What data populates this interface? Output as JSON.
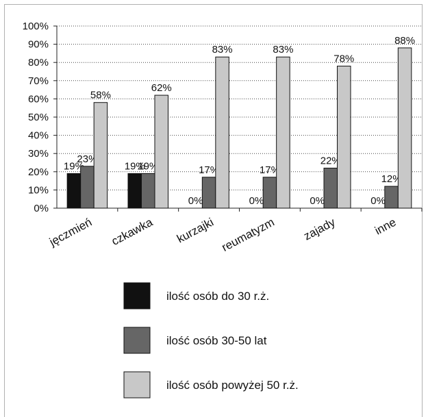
{
  "chart_data": {
    "type": "bar",
    "categories": [
      "jęczmień",
      "czkawka",
      "kurzajki",
      "reumatyzm",
      "zajady",
      "inne"
    ],
    "series": [
      {
        "name": "ilość osób do 30 r.ż.",
        "values": [
          19,
          19,
          0,
          0,
          0,
          0
        ],
        "color": "#111111"
      },
      {
        "name": "ilość osób 30-50 lat",
        "values": [
          23,
          19,
          17,
          17,
          22,
          12
        ],
        "color": "#666666"
      },
      {
        "name": "ilość osób powyżej 50 r.ż.",
        "values": [
          58,
          62,
          83,
          83,
          78,
          88
        ],
        "color": "#c8c8c8"
      }
    ],
    "y_ticks": [
      "0%",
      "10%",
      "20%",
      "30%",
      "40%",
      "50%",
      "60%",
      "70%",
      "80%",
      "90%",
      "100%"
    ],
    "ylim": [
      0,
      100
    ],
    "data_labels": [
      [
        "19%",
        "19%",
        "0%",
        "0%",
        "0%",
        "0%"
      ],
      [
        "23%",
        "19%",
        "17%",
        "17%",
        "22%",
        "12%"
      ],
      [
        "58%",
        "62%",
        "83%",
        "83%",
        "78%",
        "88%"
      ]
    ],
    "grid": true,
    "legend_position": "bottom"
  }
}
